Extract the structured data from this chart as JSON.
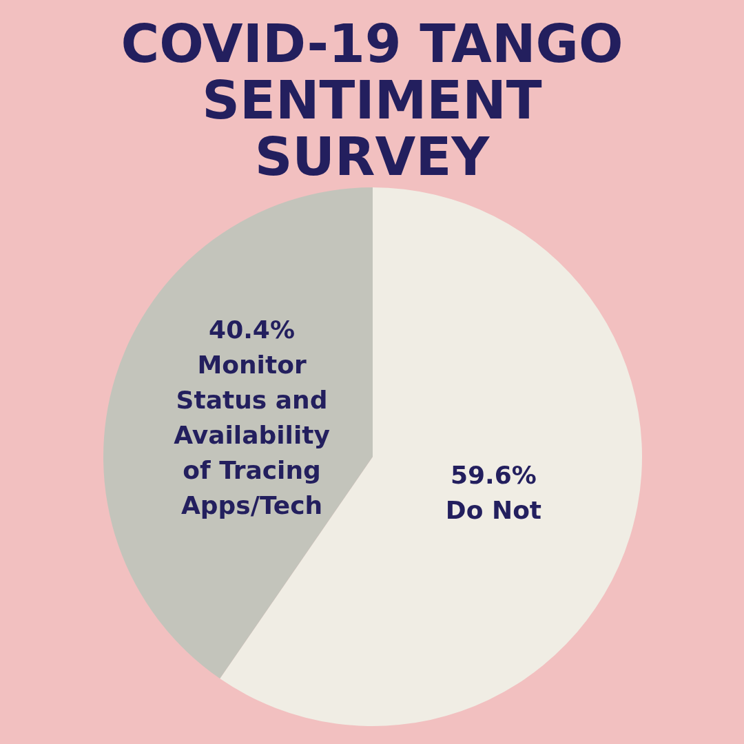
{
  "chart_data": {
    "type": "pie",
    "title": "COVID-19 TANGO SENTIMENT SURVEY",
    "categories": [
      "Do Not",
      "Monitor Status and Availability of Tracing Apps/Tech"
    ],
    "values": [
      59.6,
      40.4
    ],
    "value_labels": [
      "59.6%",
      "40.4%"
    ],
    "colors": [
      "#f0ede4",
      "#c3c4bb"
    ]
  }
}
